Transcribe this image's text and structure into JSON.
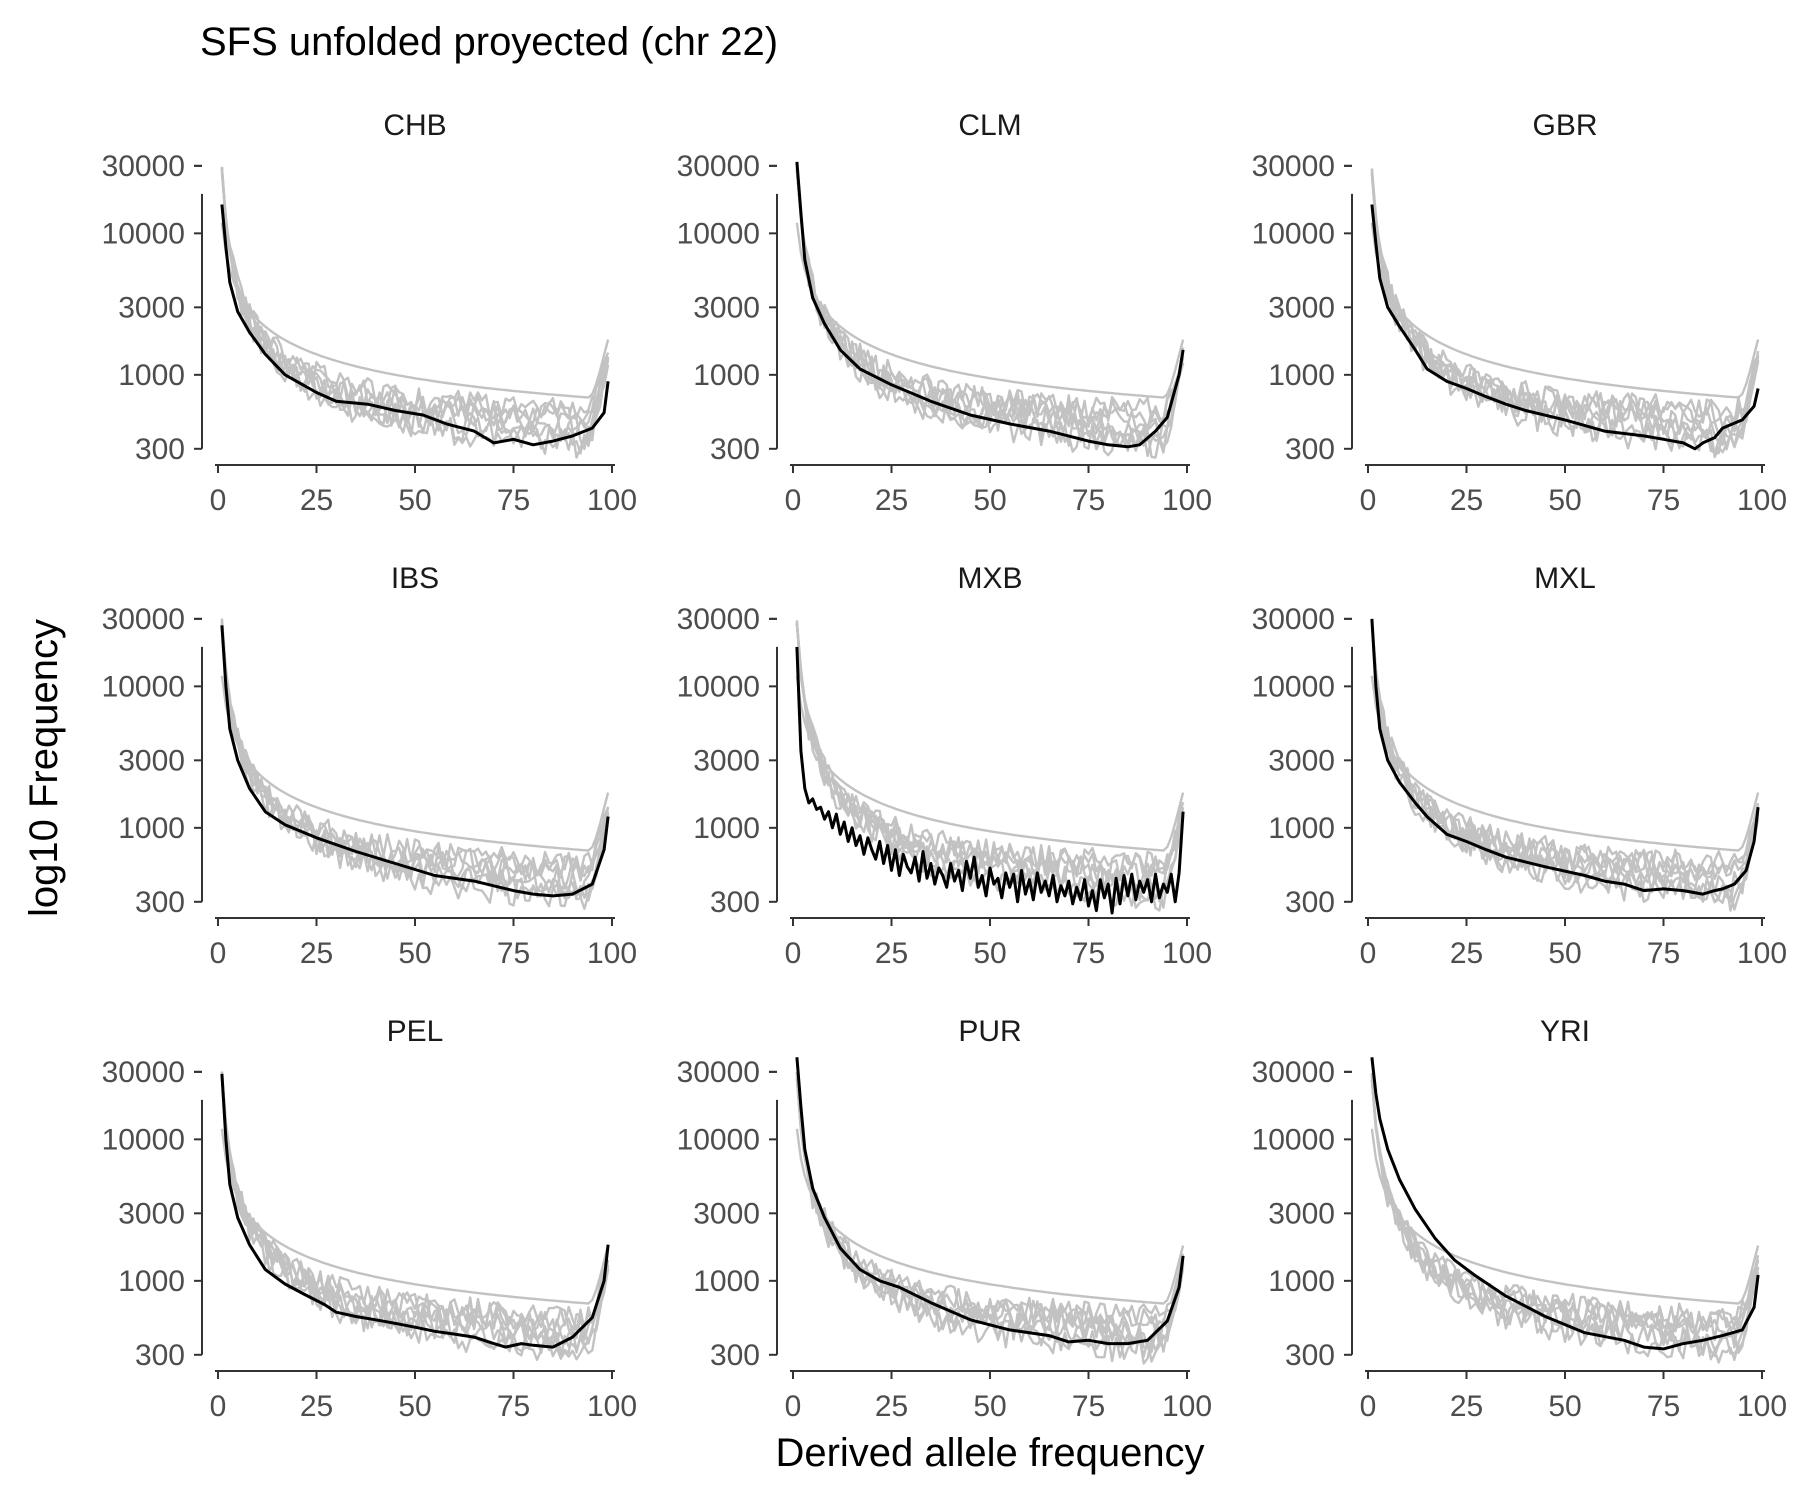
{
  "chart_data": {
    "type": "line",
    "title": "SFS unfolded proyected (chr 22)",
    "xlabel": "Derived allele frequency",
    "ylabel": "log10 Frequency",
    "y_scale": "log10",
    "xlim": [
      0,
      100
    ],
    "ylim": [
      250,
      33000
    ],
    "x_ticks": [
      0,
      25,
      50,
      75,
      100
    ],
    "y_ticks": [
      300,
      1000,
      3000,
      10000,
      30000
    ],
    "y_tick_labels": [
      "300",
      "1000",
      "3000",
      "10000",
      "30000"
    ],
    "grid": false,
    "legend": "none",
    "colors": {
      "highlight": "#000000",
      "background": "#c2c2c2"
    },
    "panels": [
      {
        "name": "CHB",
        "highlight": {
          "x": [
            1,
            2,
            3,
            5,
            8,
            12,
            17,
            25,
            30,
            38,
            45,
            52,
            58,
            65,
            70,
            75,
            80,
            85,
            90,
            95,
            98,
            99
          ],
          "y": [
            16000,
            8000,
            4500,
            2800,
            2000,
            1400,
            1000,
            750,
            650,
            620,
            560,
            520,
            450,
            400,
            330,
            350,
            320,
            340,
            370,
            420,
            540,
            900
          ]
        }
      },
      {
        "name": "CLM",
        "highlight": {
          "x": [
            1,
            2,
            3,
            5,
            8,
            12,
            17,
            25,
            35,
            45,
            55,
            65,
            75,
            80,
            85,
            88,
            92,
            95,
            98,
            99
          ],
          "y": [
            32000,
            14000,
            6500,
            3500,
            2300,
            1500,
            1100,
            850,
            650,
            520,
            450,
            400,
            340,
            320,
            310,
            320,
            400,
            500,
            1000,
            1500
          ]
        }
      },
      {
        "name": "GBR",
        "highlight": {
          "x": [
            1,
            2,
            3,
            5,
            8,
            12,
            15,
            20,
            25,
            30,
            35,
            40,
            50,
            60,
            70,
            75,
            80,
            83,
            85,
            88,
            90,
            95,
            98,
            99
          ],
          "y": [
            16000,
            8500,
            4800,
            3000,
            2200,
            1500,
            1100,
            900,
            800,
            700,
            620,
            560,
            480,
            400,
            370,
            350,
            330,
            300,
            330,
            360,
            420,
            480,
            600,
            800
          ]
        }
      },
      {
        "name": "IBS",
        "highlight": {
          "x": [
            1,
            2,
            3,
            5,
            8,
            12,
            17,
            25,
            35,
            45,
            55,
            65,
            75,
            80,
            85,
            90,
            95,
            98,
            99
          ],
          "y": [
            27000,
            10000,
            5000,
            3000,
            1900,
            1300,
            1050,
            850,
            680,
            560,
            460,
            420,
            360,
            340,
            330,
            340,
            400,
            700,
            1200
          ]
        }
      },
      {
        "name": "MXB",
        "highlight": {
          "x": [
            1,
            2,
            3,
            4,
            5,
            6,
            7,
            8,
            9,
            10,
            11,
            12,
            13,
            14,
            15,
            16,
            17,
            18,
            19,
            20,
            21,
            22,
            23,
            24,
            25,
            26,
            27,
            28,
            29,
            30,
            31,
            32,
            33,
            34,
            35,
            36,
            37,
            38,
            39,
            40,
            41,
            42,
            43,
            44,
            45,
            46,
            47,
            48,
            49,
            50,
            51,
            52,
            53,
            54,
            55,
            56,
            57,
            58,
            59,
            60,
            61,
            62,
            63,
            64,
            65,
            66,
            67,
            68,
            69,
            70,
            71,
            72,
            73,
            74,
            75,
            76,
            77,
            78,
            79,
            80,
            81,
            82,
            83,
            84,
            85,
            86,
            87,
            88,
            89,
            90,
            91,
            92,
            93,
            94,
            95,
            96,
            97,
            98,
            99
          ],
          "y": [
            19000,
            3500,
            1900,
            1500,
            1600,
            1350,
            1400,
            1150,
            1300,
            1000,
            1250,
            900,
            1100,
            800,
            1000,
            750,
            880,
            650,
            850,
            700,
            600,
            800,
            560,
            750,
            500,
            700,
            460,
            650,
            530,
            480,
            620,
            420,
            680,
            440,
            560,
            400,
            520,
            460,
            380,
            560,
            420,
            500,
            360,
            580,
            440,
            620,
            380,
            460,
            330,
            520,
            400,
            440,
            320,
            480,
            380,
            470,
            300,
            500,
            340,
            430,
            310,
            480,
            350,
            420,
            330,
            460,
            300,
            390,
            330,
            420,
            290,
            380,
            310,
            430,
            280,
            360,
            260,
            430,
            320,
            400,
            250,
            440,
            290,
            460,
            330,
            470,
            310,
            420,
            350,
            430,
            300,
            470,
            320,
            400,
            350,
            470,
            300,
            480,
            1300
          ]
        }
      },
      {
        "name": "MXL",
        "highlight": {
          "x": [
            1,
            2,
            3,
            5,
            8,
            12,
            15,
            20,
            25,
            30,
            35,
            45,
            55,
            60,
            65,
            70,
            75,
            80,
            85,
            88,
            90,
            93,
            96,
            98,
            99
          ],
          "y": [
            30000,
            10000,
            5000,
            3000,
            2100,
            1500,
            1200,
            900,
            800,
            700,
            620,
            530,
            460,
            420,
            400,
            360,
            370,
            360,
            340,
            360,
            370,
            400,
            500,
            800,
            1400
          ]
        }
      },
      {
        "name": "PEL",
        "highlight": {
          "x": [
            1,
            2,
            3,
            5,
            8,
            12,
            17,
            22,
            27,
            30,
            35,
            40,
            45,
            50,
            55,
            60,
            65,
            70,
            73,
            77,
            80,
            85,
            90,
            95,
            98,
            99
          ],
          "y": [
            29000,
            10000,
            4800,
            2800,
            1800,
            1200,
            950,
            800,
            680,
            600,
            560,
            530,
            500,
            470,
            440,
            420,
            400,
            360,
            340,
            360,
            350,
            340,
            400,
            550,
            1000,
            1800
          ]
        }
      },
      {
        "name": "PUR",
        "highlight": {
          "x": [
            1,
            2,
            3,
            5,
            8,
            12,
            17,
            22,
            27,
            35,
            45,
            55,
            65,
            70,
            75,
            80,
            85,
            90,
            95,
            98,
            99
          ],
          "y": [
            38000,
            17000,
            8500,
            4500,
            2800,
            1700,
            1200,
            1000,
            900,
            700,
            530,
            450,
            410,
            370,
            380,
            360,
            360,
            380,
            520,
            900,
            1500
          ]
        }
      },
      {
        "name": "YRI",
        "highlight": {
          "x": [
            1,
            2,
            3,
            5,
            8,
            12,
            17,
            22,
            27,
            35,
            45,
            55,
            65,
            70,
            75,
            80,
            85,
            90,
            95,
            98,
            99
          ],
          "y": [
            38000,
            21000,
            14000,
            8500,
            5200,
            3200,
            2000,
            1400,
            1100,
            780,
            560,
            430,
            380,
            340,
            330,
            360,
            380,
            410,
            450,
            650,
            1100
          ]
        }
      }
    ]
  }
}
